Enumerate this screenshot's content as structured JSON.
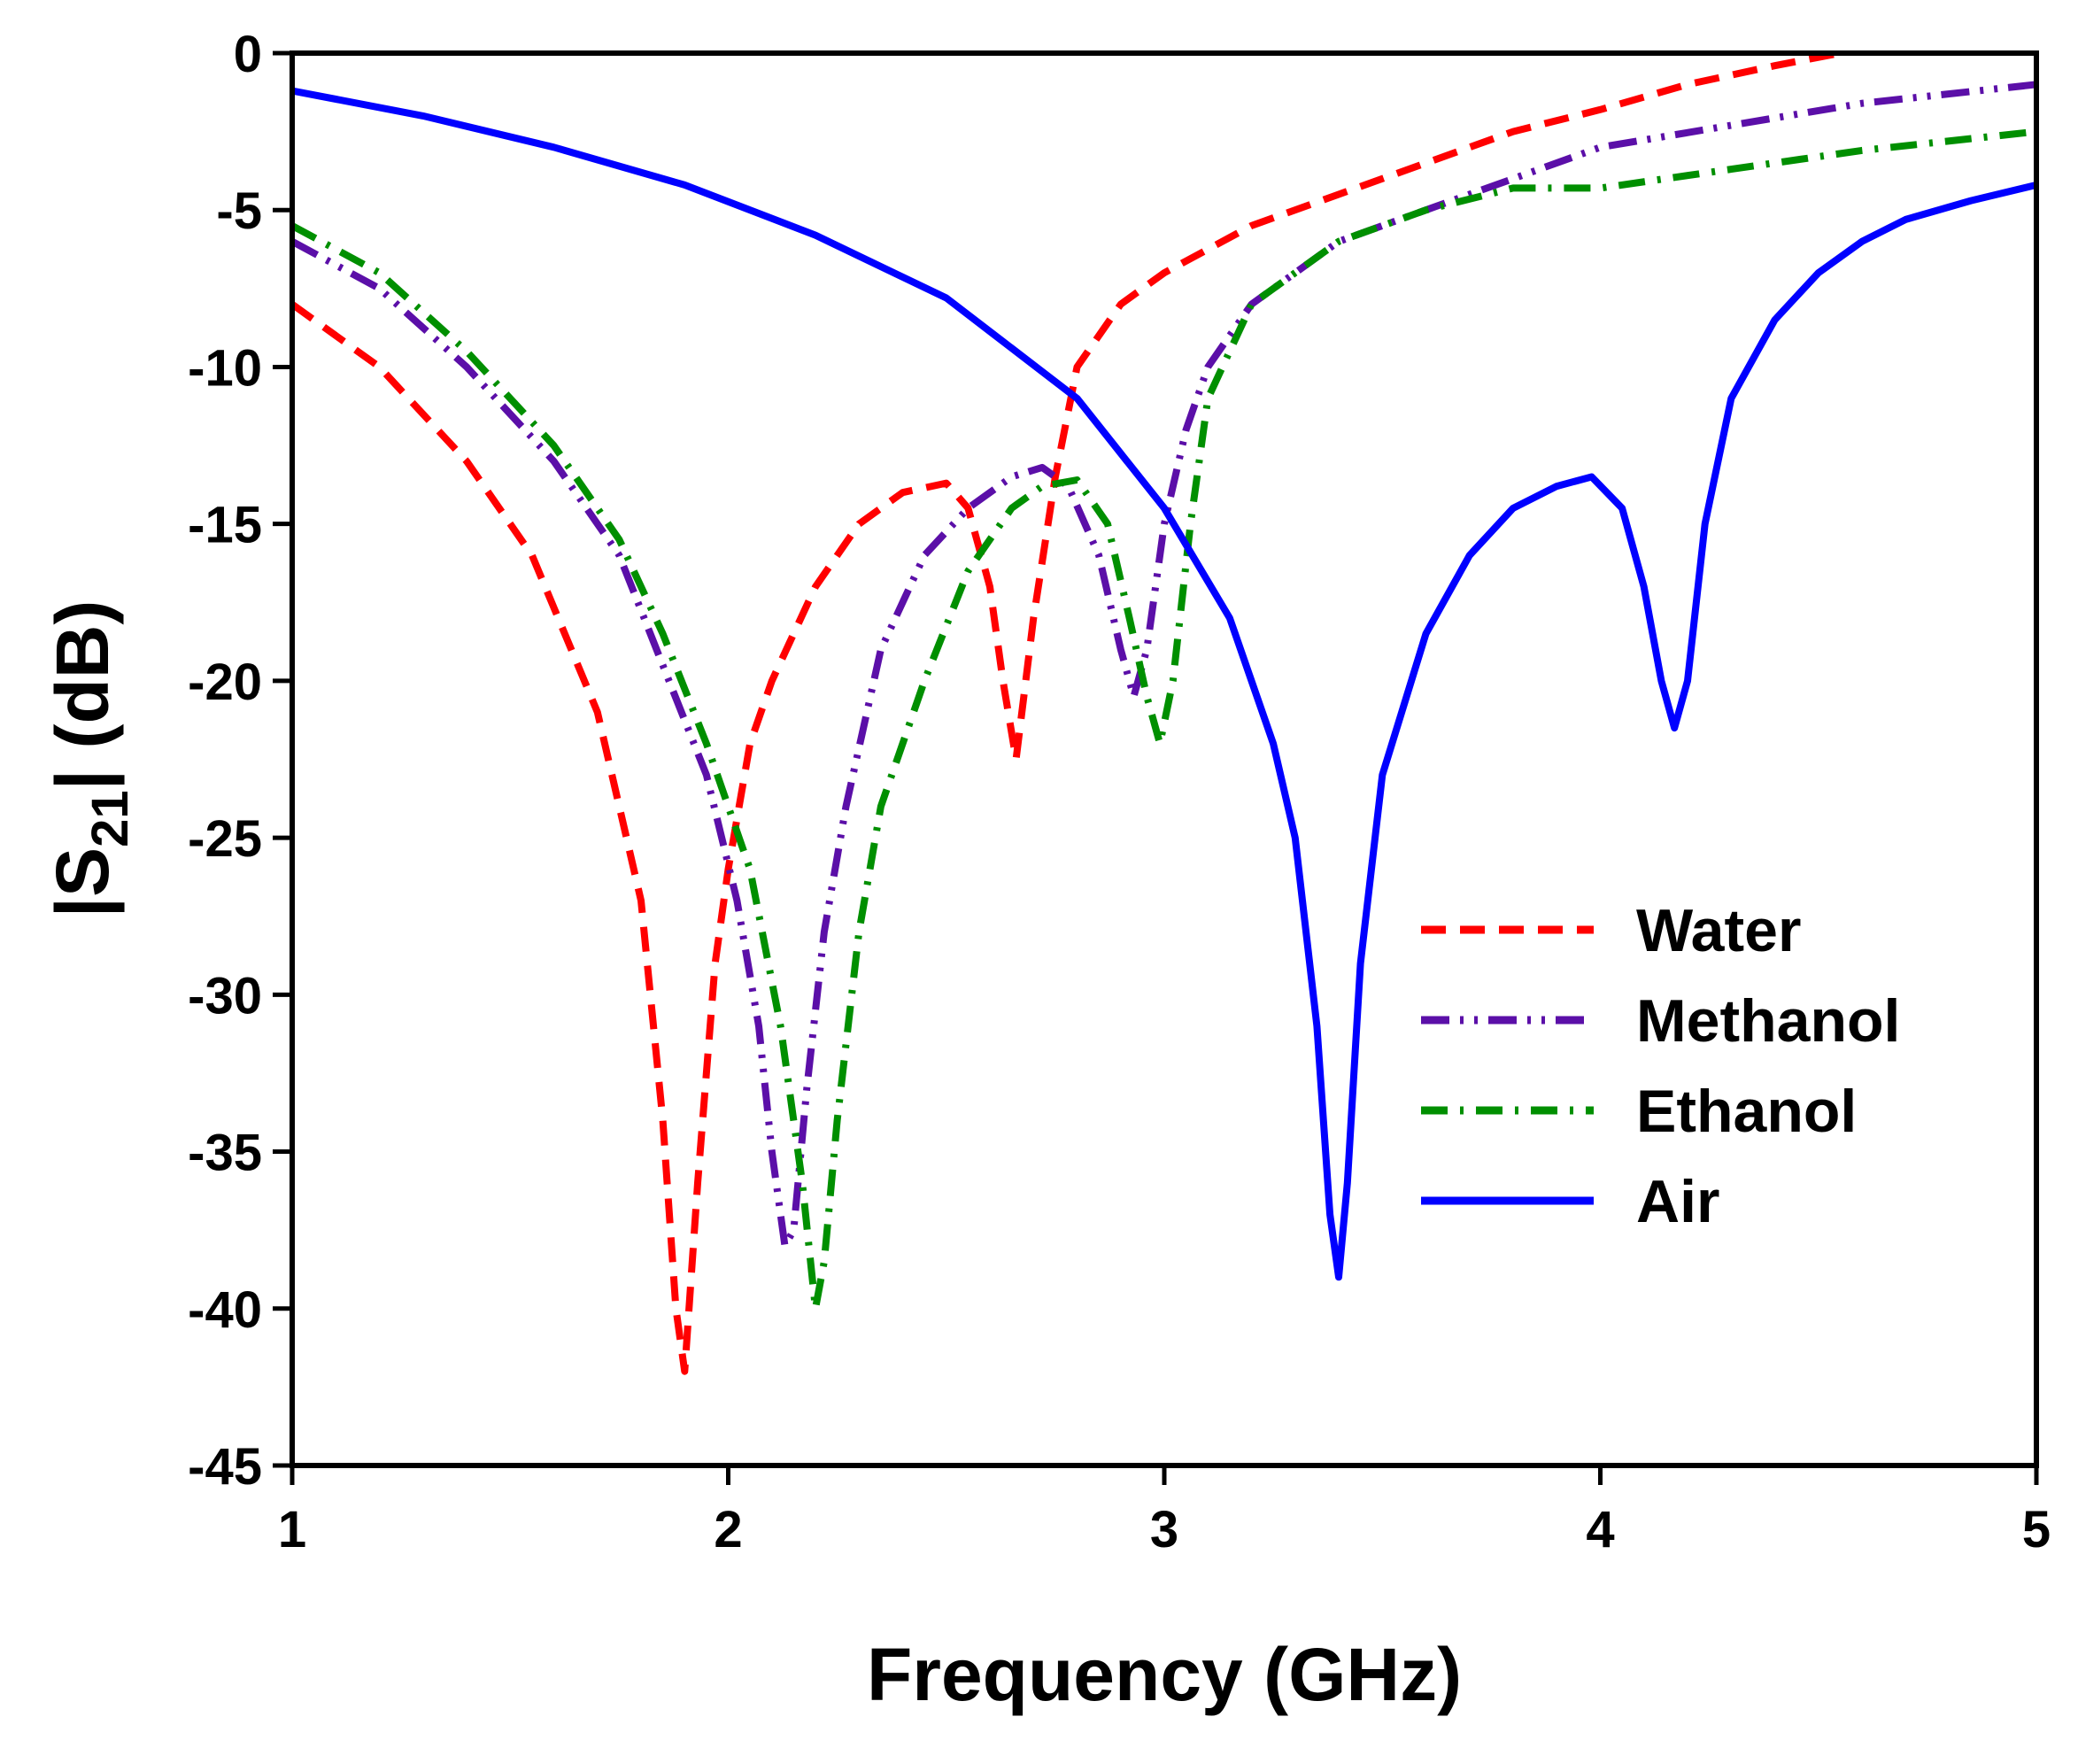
{
  "chart_data": {
    "type": "line",
    "title": "",
    "xlabel": "Frequency (GHz)",
    "ylabel_parts": {
      "left": "|S",
      "sub": "21",
      "right": "| (dB)"
    },
    "xlim": [
      1,
      5
    ],
    "ylim": [
      -45,
      0
    ],
    "xticks": [
      1,
      2,
      3,
      4,
      5
    ],
    "xtick_labels": [
      "1",
      "2",
      "3",
      "4",
      "5"
    ],
    "yticks": [
      0,
      -5,
      -10,
      -15,
      -20,
      -25,
      -30,
      -35,
      -40,
      -45
    ],
    "ytick_labels": [
      "0",
      "-5",
      "-10",
      "-15",
      "-20",
      "-25",
      "-30",
      "-35",
      "-40",
      "-45"
    ],
    "grid": false,
    "legend_position": "lower-right",
    "series": [
      {
        "name": "Water",
        "color": "#ff0000",
        "dash": "dashed",
        "x": [
          1.0,
          1.2,
          1.4,
          1.55,
          1.7,
          1.8,
          1.85,
          1.88,
          1.9,
          1.93,
          1.97,
          2.0,
          2.05,
          2.1,
          2.2,
          2.3,
          2.4,
          2.5,
          2.55,
          2.6,
          2.63,
          2.66,
          2.7,
          2.75,
          2.8,
          2.9,
          3.0,
          3.2,
          3.4,
          3.6,
          3.8,
          4.0,
          4.2,
          4.4,
          4.55
        ],
        "y": [
          -8,
          -10,
          -13,
          -16,
          -21,
          -27,
          -34,
          -40,
          -42,
          -36,
          -29,
          -26,
          -22,
          -20,
          -17,
          -15,
          -14,
          -13.7,
          -14.5,
          -17,
          -20,
          -22.5,
          -18,
          -13.5,
          -10,
          -8,
          -7,
          -5.5,
          -4.5,
          -3.5,
          -2.5,
          -1.8,
          -1,
          -0.4,
          0
        ]
      },
      {
        "name": "Methanol",
        "color": "#5b0fa8",
        "dash": "dash-dot-dot",
        "x": [
          1.0,
          1.2,
          1.4,
          1.6,
          1.75,
          1.85,
          1.95,
          2.02,
          2.07,
          2.1,
          2.13,
          2.15,
          2.18,
          2.22,
          2.27,
          2.35,
          2.45,
          2.55,
          2.65,
          2.72,
          2.78,
          2.85,
          2.9,
          2.93,
          2.96,
          3.0,
          3.05,
          3.1,
          3.2,
          3.4,
          3.6,
          3.8,
          4.0,
          4.3,
          4.6,
          5.0
        ],
        "y": [
          -6,
          -7.5,
          -10,
          -13,
          -16,
          -19.5,
          -23,
          -27,
          -31,
          -35,
          -38,
          -37.5,
          -33,
          -28,
          -24,
          -19,
          -16,
          -14.5,
          -13.5,
          -13.2,
          -13.8,
          -16,
          -19,
          -20.5,
          -19,
          -15,
          -12,
          -10,
          -8,
          -6,
          -5,
          -4,
          -3,
          -2.3,
          -1.6,
          -1
        ]
      },
      {
        "name": "Ethanol",
        "color": "#008f00",
        "dash": "dash-dot",
        "x": [
          1.0,
          1.2,
          1.4,
          1.6,
          1.75,
          1.85,
          1.95,
          2.05,
          2.12,
          2.17,
          2.2,
          2.22,
          2.25,
          2.3,
          2.35,
          2.45,
          2.55,
          2.65,
          2.72,
          2.8,
          2.87,
          2.92,
          2.96,
          2.99,
          3.02,
          3.06,
          3.1,
          3.2,
          3.4,
          3.6,
          3.8,
          4.0,
          4.3,
          4.6,
          5.0
        ],
        "y": [
          -5.5,
          -7,
          -9.5,
          -12.5,
          -15.5,
          -18.5,
          -22,
          -26,
          -31,
          -36,
          -40,
          -38.5,
          -34,
          -28,
          -24,
          -20,
          -16.5,
          -14.5,
          -13.8,
          -13.6,
          -15,
          -18,
          -20.5,
          -22,
          -20,
          -15,
          -11,
          -8,
          -6,
          -5,
          -4.3,
          -4.3,
          -3.7,
          -3.1,
          -2.5
        ]
      },
      {
        "name": "Air",
        "color": "#0000ff",
        "dash": "solid",
        "x": [
          1.0,
          1.3,
          1.6,
          1.9,
          2.2,
          2.5,
          2.8,
          3.0,
          3.15,
          3.25,
          3.3,
          3.35,
          3.38,
          3.4,
          3.42,
          3.45,
          3.5,
          3.6,
          3.7,
          3.8,
          3.9,
          3.98,
          4.05,
          4.1,
          4.14,
          4.17,
          4.2,
          4.24,
          4.3,
          4.4,
          4.5,
          4.6,
          4.7,
          4.85,
          5.0
        ],
        "y": [
          -1.2,
          -2,
          -3,
          -4.2,
          -5.8,
          -7.8,
          -11,
          -14.5,
          -18,
          -22,
          -25,
          -31,
          -37,
          -39,
          -36,
          -29,
          -23,
          -18.5,
          -16,
          -14.5,
          -13.8,
          -13.5,
          -14.5,
          -17,
          -20,
          -21.5,
          -20,
          -15,
          -11,
          -8.5,
          -7,
          -6,
          -5.3,
          -4.7,
          -4.2
        ]
      }
    ]
  }
}
